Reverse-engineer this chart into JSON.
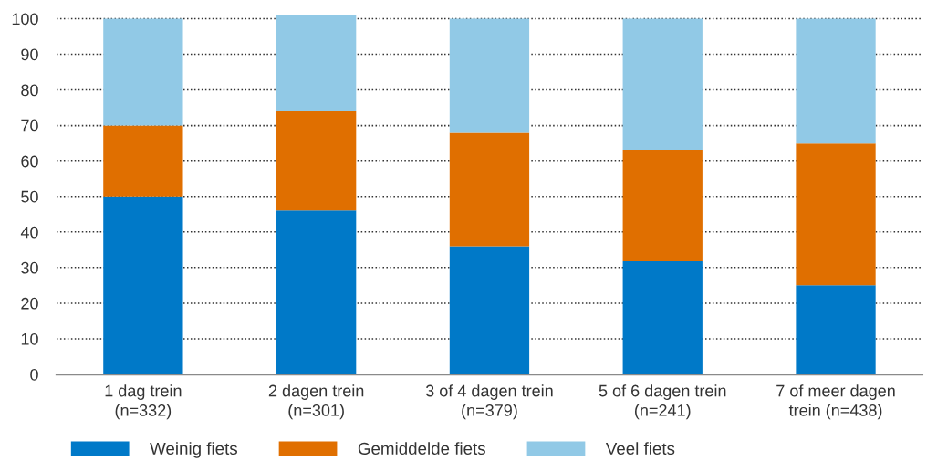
{
  "chart_data": {
    "type": "bar",
    "stacked": true,
    "categories": [
      "1 dag trein\n(n=332)",
      "2 dagen trein\n(n=301)",
      "3 of 4 dagen trein\n(n=379)",
      "5 of 6 dagen trein\n(n=241)",
      "7 of meer dagen\ntrein (n=438)"
    ],
    "series": [
      {
        "name": "Weinig fiets",
        "color": "#0079c8",
        "values": [
          50,
          46,
          36,
          32,
          25
        ]
      },
      {
        "name": "Gemiddelde fiets",
        "color": "#e06f00",
        "values": [
          20,
          28,
          32,
          31,
          40
        ]
      },
      {
        "name": "Veel fiets",
        "color": "#91c9e6",
        "values": [
          30,
          27,
          32,
          37,
          35
        ]
      }
    ],
    "ylim": [
      0,
      101
    ],
    "yticks": [
      0,
      10,
      20,
      30,
      40,
      50,
      60,
      70,
      80,
      90,
      100
    ],
    "grid": "y",
    "legend": "bottom"
  }
}
